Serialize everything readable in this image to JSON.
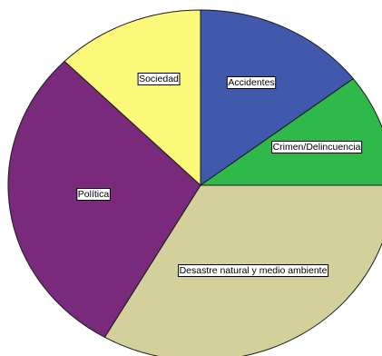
{
  "chart_data": {
    "type": "pie",
    "title": "",
    "legend": "none",
    "slices": [
      {
        "label": "Accidentes",
        "value": 14.6,
        "color": "#4059ad"
      },
      {
        "label": "Crimen/Delincuencia",
        "value": 10.4,
        "color": "#2fb94b"
      },
      {
        "label": "Desastre natural y medio ambiente",
        "value": 33.3,
        "color": "#d4d09b"
      },
      {
        "label": "Política",
        "value": 29.2,
        "color": "#7a2a7c"
      },
      {
        "label": "Sociedad",
        "value": 12.5,
        "color": "#fbf97a"
      }
    ]
  }
}
